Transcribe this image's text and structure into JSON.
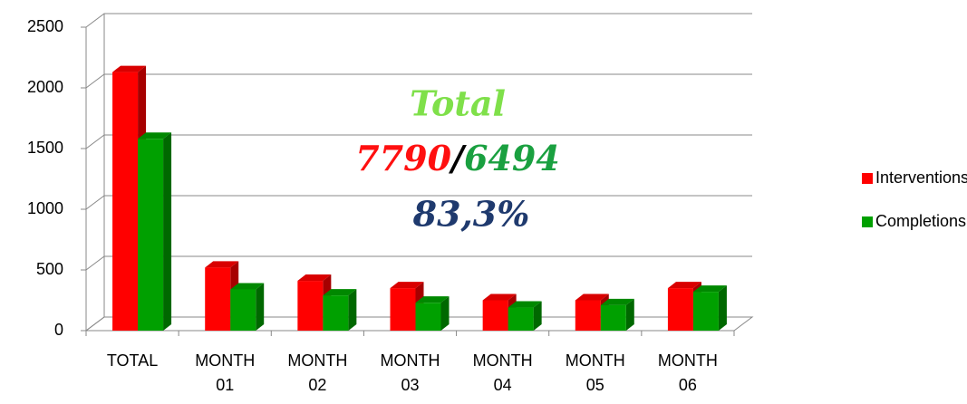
{
  "chart_data": {
    "type": "bar3d",
    "categories": [
      "TOTAL",
      "MONTH 01",
      "MONTH 02",
      "MONTH 03",
      "MONTH 04",
      "MONTH 05",
      "MONTH 06"
    ],
    "series": [
      {
        "name": "Interventions",
        "color": "#ff0000",
        "values": [
          2130,
          520,
          410,
          350,
          250,
          250,
          350
        ]
      },
      {
        "name": "Completions",
        "color": "#00a000",
        "values": [
          1580,
          340,
          290,
          230,
          190,
          210,
          320
        ]
      }
    ],
    "ylim": [
      0,
      2500
    ],
    "yticks": [
      0,
      500,
      1000,
      1500,
      2000,
      2500
    ],
    "grid": true,
    "legend": "right",
    "annotations": {
      "label": "Total",
      "interventions_total": "7790",
      "separator": "/",
      "completions_total": "6494",
      "ratio": "83,3%"
    }
  }
}
